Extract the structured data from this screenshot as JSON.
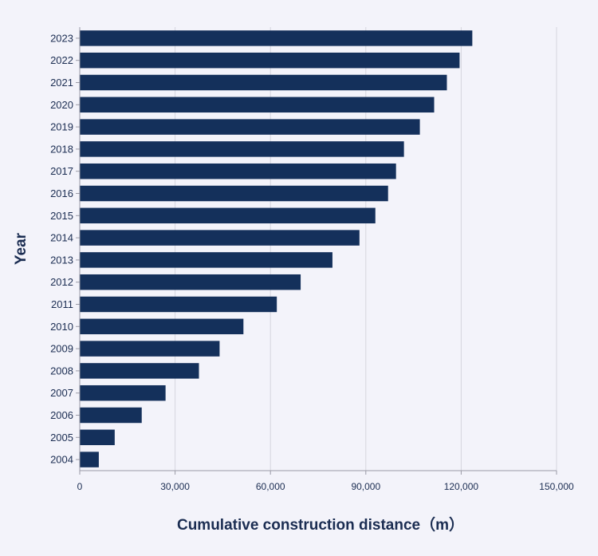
{
  "chart_data": {
    "type": "bar",
    "orientation": "horizontal",
    "categories": [
      "2004",
      "2005",
      "2006",
      "2007",
      "2008",
      "2009",
      "2010",
      "2011",
      "2012",
      "2013",
      "2014",
      "2015",
      "2016",
      "2017",
      "2018",
      "2019",
      "2020",
      "2021",
      "2022",
      "2023"
    ],
    "values": [
      6000,
      11000,
      19500,
      27000,
      37500,
      44000,
      51500,
      62000,
      69500,
      79500,
      88000,
      93000,
      97000,
      99500,
      102000,
      107000,
      111500,
      115500,
      119500,
      123500
    ],
    "xlabel": "Cumulative construction distance（m）",
    "ylabel": "Year",
    "xlim": [
      0,
      150000
    ],
    "xticks": [
      "0",
      "30,000",
      "60,000",
      "90,000",
      "120,000",
      "150,000"
    ],
    "xtick_values": [
      0,
      30000,
      60000,
      90000,
      120000,
      150000
    ],
    "grid": "vertical",
    "bar_color": "#14305b"
  }
}
